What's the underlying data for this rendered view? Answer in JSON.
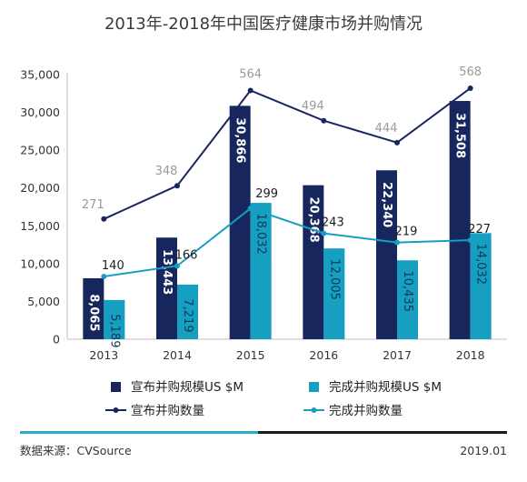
{
  "chart_data": {
    "type": "bar",
    "title": "2013年-2018年中国医疗健康市场并购情况",
    "categories": [
      "2013",
      "2014",
      "2015",
      "2016",
      "2017",
      "2018"
    ],
    "ylim": [
      0,
      35000
    ],
    "yticks": [
      0,
      5000,
      10000,
      15000,
      20000,
      25000,
      30000,
      35000
    ],
    "ytick_labels": [
      "0",
      "5,000",
      "10,000",
      "15,000",
      "20,000",
      "25,000",
      "30,000",
      "35,000"
    ],
    "grid": false,
    "legend_position": "bottom",
    "bar_series": [
      {
        "name": "宣布并购规模US $M",
        "color": "#17275e",
        "values": [
          8065,
          13443,
          30866,
          20368,
          22340,
          31508
        ],
        "labels": [
          "8,065",
          "13,443",
          "30,866",
          "20,368",
          "22,340",
          "31,508"
        ]
      },
      {
        "name": "完成并购规模US $M",
        "color": "#169fc1",
        "values": [
          5189,
          7219,
          18032,
          12005,
          10435,
          14032
        ],
        "labels": [
          "5,189",
          "7,219",
          "18,032",
          "12,005",
          "10,435",
          "14,032"
        ]
      }
    ],
    "line_series": [
      {
        "name": "宣布并购数量",
        "color": "#17275e",
        "values": [
          271,
          348,
          564,
          494,
          444,
          568
        ],
        "plot_y": [
          15900,
          20300,
          32900,
          28900,
          26000,
          33200
        ]
      },
      {
        "name": "完成并购数量",
        "color": "#169fc1",
        "values": [
          140,
          166,
          299,
          243,
          219,
          227
        ],
        "plot_y": [
          8300,
          9700,
          17300,
          14000,
          12800,
          13100
        ]
      }
    ],
    "source": "数据来源：CVSource",
    "date": "2019.01"
  }
}
